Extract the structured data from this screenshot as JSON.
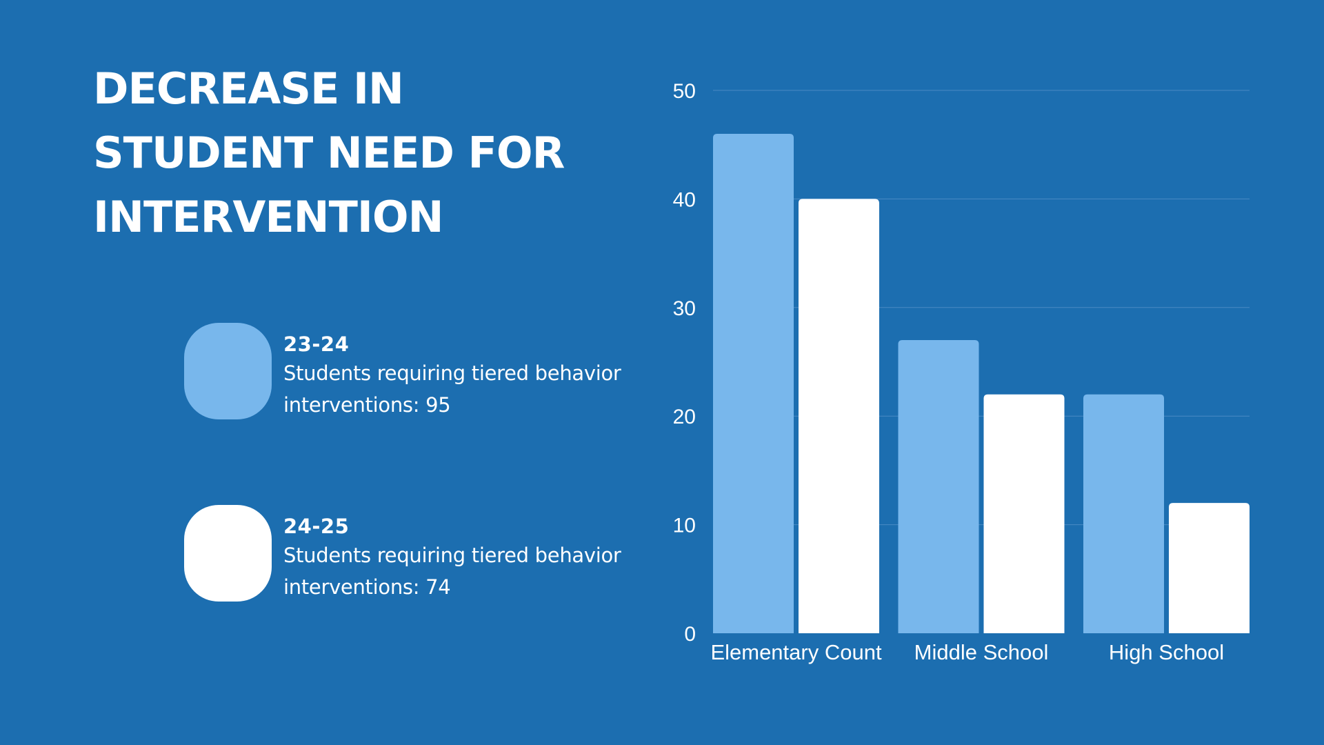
{
  "title": "DECREASE IN STUDENT NEED FOR INTERVENTION",
  "colors": {
    "background": "#1c6eb0",
    "series_23_24": "#78b7ec",
    "series_24_25": "#ffffff",
    "gridline": "#4a8ac4"
  },
  "legend": [
    {
      "year": "23-24",
      "description": "Students requiring tiered behavior interventions: 95",
      "color": "#78b7ec"
    },
    {
      "year": "24-25",
      "description": "Students requiring tiered behavior interventions:  74",
      "color": "#ffffff"
    }
  ],
  "chart_data": {
    "type": "bar",
    "title": "",
    "xlabel": "",
    "ylabel": "",
    "categories": [
      "Elementary Count",
      "Middle School",
      "High School"
    ],
    "series": [
      {
        "name": "23-24",
        "values": [
          46,
          27,
          22
        ],
        "color": "#78b7ec"
      },
      {
        "name": "24-25",
        "values": [
          40,
          22,
          12
        ],
        "color": "#ffffff"
      }
    ],
    "ylim": [
      0,
      50
    ],
    "yticks": [
      0,
      10,
      20,
      30,
      40,
      50
    ],
    "grid": true,
    "legend_position": "left"
  }
}
